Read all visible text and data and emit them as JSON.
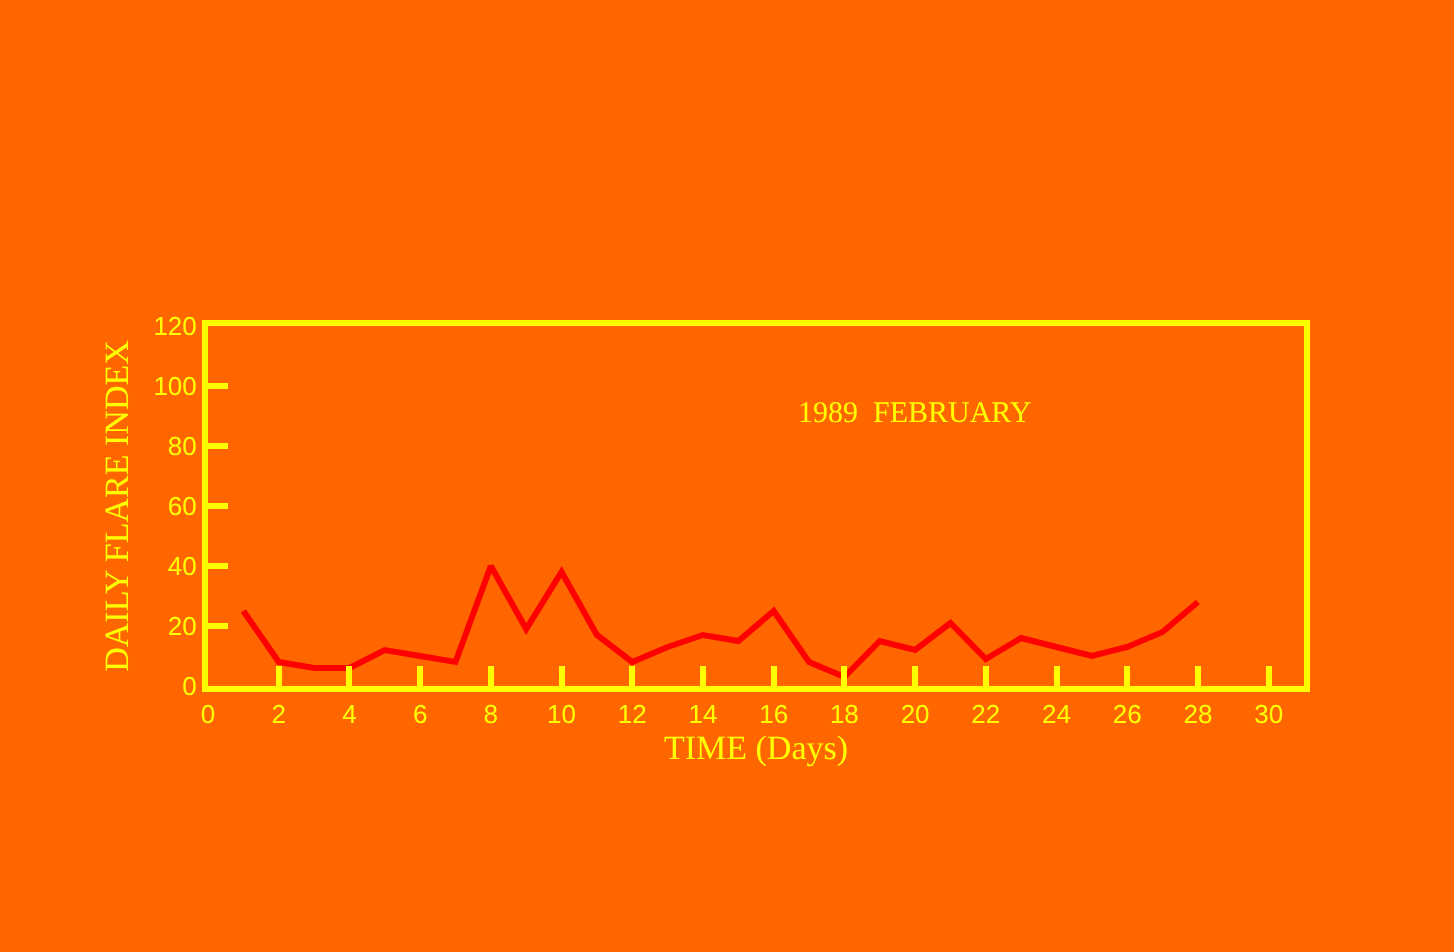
{
  "chart_data": {
    "type": "line",
    "xlabel": "TIME (Days)",
    "ylabel": "DAILY FLARE INDEX",
    "x": [
      1,
      2,
      3,
      4,
      5,
      6,
      7,
      8,
      9,
      10,
      11,
      12,
      13,
      14,
      15,
      16,
      17,
      18,
      19,
      20,
      21,
      22,
      23,
      24,
      25,
      26,
      27,
      28
    ],
    "series": [
      {
        "color": "#ff0000",
        "values": [
          25,
          8,
          6,
          6,
          12,
          10,
          8,
          40,
          19,
          38,
          17,
          8,
          13,
          17,
          15,
          25,
          8,
          3,
          15,
          12,
          21,
          9,
          16,
          13,
          10,
          13,
          18,
          28
        ]
      }
    ],
    "xlim": [
      0,
      31
    ],
    "xticks": [
      0,
      2,
      4,
      6,
      8,
      10,
      12,
      14,
      16,
      18,
      20,
      22,
      24,
      26,
      28,
      30
    ],
    "ylim": [
      0,
      120
    ],
    "yticks": [
      0,
      20,
      40,
      60,
      80,
      100,
      120
    ],
    "annotations": [
      "1989  FEBRUARY"
    ],
    "grid": false,
    "marker": "none",
    "line_style": "solid"
  }
}
